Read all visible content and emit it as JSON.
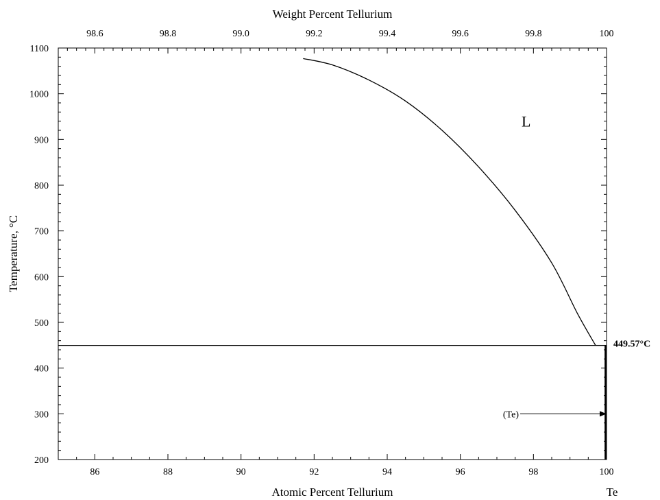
{
  "chart_data": {
    "type": "line",
    "title": "",
    "xlabel": "Atomic Percent Tellurium",
    "x2label": "Weight Percent Tellurium",
    "ylabel": "Temperature, °C",
    "xlim": [
      85,
      100
    ],
    "ylim": [
      200,
      1100
    ],
    "x2lim": [
      98.5,
      100
    ],
    "x_ticks": [
      86,
      88,
      90,
      92,
      94,
      96,
      98,
      100
    ],
    "x_tick_labels": [
      "86",
      "88",
      "90",
      "92",
      "94",
      "96",
      "98",
      "100"
    ],
    "x2_ticks": [
      98.6,
      98.8,
      99.0,
      99.2,
      99.4,
      99.6,
      99.8,
      100
    ],
    "x2_tick_labels": [
      "98.6",
      "98.8",
      "99.0",
      "99.2",
      "99.4",
      "99.6",
      "99.8",
      "100"
    ],
    "y_ticks": [
      200,
      300,
      400,
      500,
      600,
      700,
      800,
      900,
      1000,
      1100
    ],
    "y_tick_labels": [
      "200",
      "300",
      "400",
      "500",
      "600",
      "700",
      "800",
      "900",
      "1000",
      "1100"
    ],
    "grid": false,
    "element_label": "Te",
    "series": [
      {
        "kind": "liquidus",
        "points": [
          [
            91.7,
            1077
          ],
          [
            92.5,
            1063
          ],
          [
            93.5,
            1030
          ],
          [
            94.5,
            984
          ],
          [
            95.5,
            920
          ],
          [
            96.5,
            840
          ],
          [
            97.5,
            745
          ],
          [
            98.5,
            630
          ],
          [
            99.2,
            520
          ],
          [
            99.7,
            449.57
          ]
        ]
      },
      {
        "kind": "eutectic-isotherm",
        "points": [
          [
            85,
            449.57
          ],
          [
            99.7,
            449.57
          ]
        ]
      },
      {
        "kind": "solidus",
        "points": [
          [
            99.7,
            449.57
          ],
          [
            100,
            449.57
          ]
        ]
      },
      {
        "kind": "Te-solvus",
        "points": [
          [
            99.97,
            449.57
          ],
          [
            99.97,
            200
          ]
        ]
      }
    ],
    "annotations": {
      "liquid_label": {
        "text": "L",
        "x": 97.8,
        "y": 940
      },
      "eutectic_temp_label": {
        "text": "449.57°C",
        "y": 449.57
      },
      "te_phase_label": {
        "text": "(Te)",
        "x": 97.6,
        "y": 300
      }
    }
  }
}
